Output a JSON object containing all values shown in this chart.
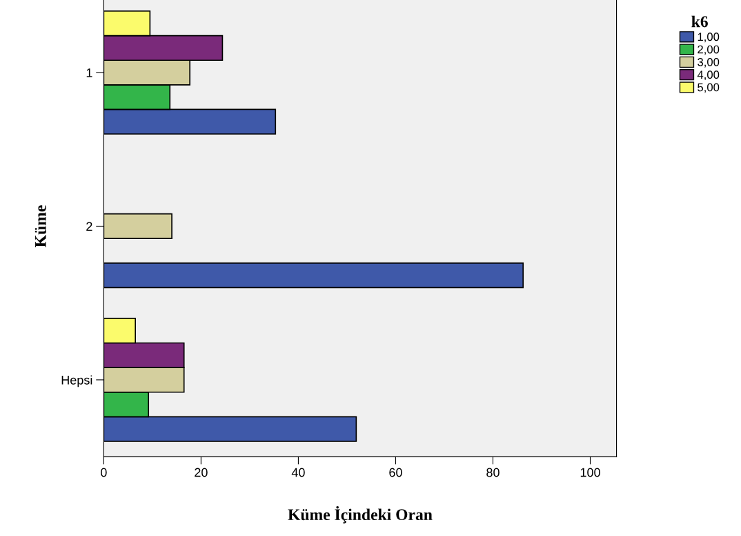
{
  "chart_data": {
    "type": "bar",
    "orientation": "horizontal",
    "xlabel": "Küme İçindeki Oran",
    "ylabel": "Küme",
    "legend_title": "k6",
    "legend": "top right",
    "categories": [
      "1",
      "2",
      "Hepsi"
    ],
    "series": [
      {
        "name": "1,00",
        "color": "#3f59a9",
        "values": [
          35.3,
          86.2,
          51.9
        ]
      },
      {
        "name": "2,00",
        "color": "#33b54a",
        "values": [
          13.6,
          null,
          9.2
        ]
      },
      {
        "name": "3,00",
        "color": "#d4cf9e",
        "values": [
          17.7,
          14.0,
          16.5
        ]
      },
      {
        "name": "4,00",
        "color": "#7a2a7a",
        "values": [
          24.4,
          null,
          16.5
        ]
      },
      {
        "name": "5,00",
        "color": "#fbfb6c",
        "values": [
          9.5,
          null,
          6.5
        ]
      }
    ],
    "xlim": [
      0,
      105.4
    ],
    "xticks": [
      0,
      20,
      40,
      60,
      80,
      100
    ],
    "grid": false
  }
}
